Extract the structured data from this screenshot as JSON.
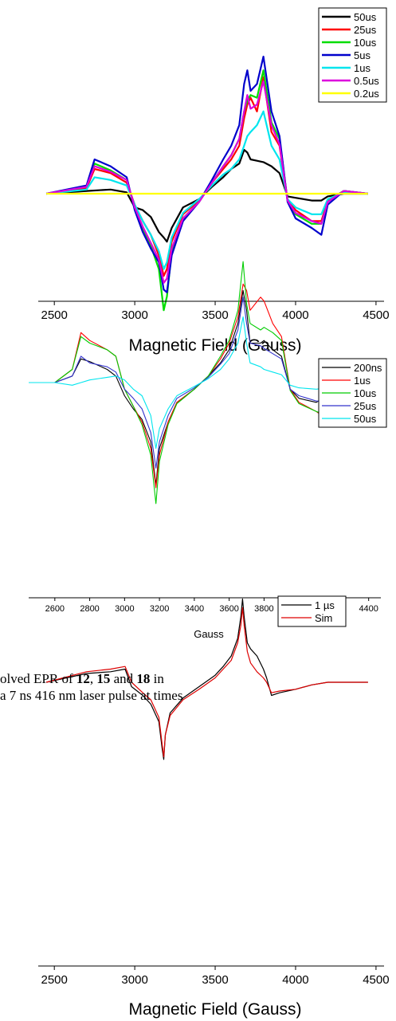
{
  "caption": {
    "line1": [
      "olved EPR of ",
      "12",
      ", ",
      "15",
      " and ",
      "18",
      " in"
    ],
    "line2": "a 7 ns 416 nm laser pulse at times"
  },
  "chart_data": [
    {
      "type": "line",
      "xlabel": "Magnetic Field (Gauss)",
      "xlim": [
        2400,
        4550
      ],
      "ylim": [
        -1.0,
        1.0
      ],
      "xticks": [
        2500,
        3000,
        3500,
        4000,
        4500
      ],
      "legend": "top-right",
      "series": [
        {
          "name": "50us",
          "color": "#000000",
          "x": [
            2450,
            2700,
            2850,
            2950,
            3000,
            3050,
            3100,
            3150,
            3180,
            3200,
            3230,
            3300,
            3400,
            3480,
            3550,
            3600,
            3650,
            3680,
            3700,
            3720,
            3760,
            3800,
            3850,
            3900,
            3950,
            4000,
            4100,
            4160,
            4200,
            4300,
            4450
          ],
          "y": [
            0,
            0.02,
            0.03,
            0.01,
            -0.1,
            -0.12,
            -0.17,
            -0.28,
            -0.32,
            -0.35,
            -0.25,
            -0.1,
            -0.04,
            0.05,
            0.12,
            0.18,
            0.22,
            0.32,
            0.3,
            0.25,
            0.24,
            0.23,
            0.2,
            0.15,
            -0.02,
            -0.03,
            -0.05,
            -0.05,
            -0.02,
            0,
            0
          ]
        },
        {
          "name": "25us",
          "color": "#ff0000",
          "x": [
            2450,
            2700,
            2750,
            2850,
            2950,
            3000,
            3050,
            3100,
            3150,
            3180,
            3200,
            3230,
            3300,
            3400,
            3480,
            3550,
            3600,
            3650,
            3680,
            3700,
            3720,
            3760,
            3800,
            3850,
            3900,
            3950,
            4000,
            4100,
            4160,
            4200,
            4300,
            4450
          ],
          "y": [
            0,
            0.04,
            0.18,
            0.15,
            0.08,
            -0.08,
            -0.2,
            -0.3,
            -0.45,
            -0.6,
            -0.55,
            -0.35,
            -0.15,
            -0.05,
            0.08,
            0.18,
            0.25,
            0.35,
            0.55,
            0.65,
            0.7,
            0.6,
            0.85,
            0.45,
            0.35,
            -0.05,
            -0.12,
            -0.2,
            -0.2,
            -0.05,
            0.02,
            0
          ]
        },
        {
          "name": "10us",
          "color": "#00dd00",
          "x": [
            2450,
            2700,
            2750,
            2850,
            2950,
            3000,
            3050,
            3100,
            3150,
            3180,
            3200,
            3230,
            3300,
            3400,
            3480,
            3550,
            3600,
            3650,
            3680,
            3700,
            3720,
            3760,
            3800,
            3850,
            3900,
            3950,
            4000,
            4100,
            4160,
            4200,
            4300,
            4450
          ],
          "y": [
            0,
            0.05,
            0.22,
            0.17,
            0.1,
            -0.1,
            -0.25,
            -0.38,
            -0.55,
            -0.85,
            -0.75,
            -0.42,
            -0.18,
            -0.06,
            0.08,
            0.2,
            0.28,
            0.4,
            0.6,
            0.68,
            0.72,
            0.7,
            0.9,
            0.52,
            0.4,
            -0.05,
            -0.15,
            -0.22,
            -0.22,
            -0.05,
            0.02,
            0
          ]
        },
        {
          "name": "5us",
          "color": "#0000cc",
          "x": [
            2450,
            2700,
            2750,
            2850,
            2950,
            3000,
            3050,
            3100,
            3150,
            3180,
            3200,
            3230,
            3300,
            3400,
            3480,
            3550,
            3600,
            3650,
            3680,
            3700,
            3720,
            3760,
            3800,
            3850,
            3900,
            3950,
            4000,
            4100,
            4160,
            4200,
            4300,
            4450
          ],
          "y": [
            0,
            0.06,
            0.25,
            0.2,
            0.12,
            -0.12,
            -0.28,
            -0.4,
            -0.5,
            -0.7,
            -0.72,
            -0.45,
            -0.2,
            -0.06,
            0.1,
            0.25,
            0.35,
            0.5,
            0.8,
            0.9,
            0.75,
            0.8,
            1.0,
            0.6,
            0.42,
            -0.06,
            -0.18,
            -0.25,
            -0.3,
            -0.08,
            0.02,
            0
          ]
        },
        {
          "name": "1us",
          "color": "#00e5ee",
          "x": [
            2450,
            2700,
            2750,
            2850,
            2950,
            3000,
            3050,
            3100,
            3150,
            3180,
            3200,
            3230,
            3300,
            3400,
            3480,
            3550,
            3600,
            3650,
            3680,
            3700,
            3720,
            3760,
            3800,
            3850,
            3900,
            3950,
            4000,
            4100,
            4160,
            4200,
            4300,
            4450
          ],
          "y": [
            0,
            0.03,
            0.12,
            0.1,
            0.06,
            -0.08,
            -0.2,
            -0.3,
            -0.42,
            -0.55,
            -0.5,
            -0.32,
            -0.14,
            -0.04,
            0.06,
            0.14,
            0.18,
            0.25,
            0.35,
            0.42,
            0.45,
            0.5,
            0.6,
            0.35,
            0.25,
            -0.04,
            -0.1,
            -0.15,
            -0.15,
            -0.04,
            0.01,
            0
          ]
        },
        {
          "name": "0.5us",
          "color": "#dd00dd",
          "x": [
            2450,
            2700,
            2750,
            2850,
            2950,
            3000,
            3050,
            3100,
            3150,
            3180,
            3200,
            3230,
            3300,
            3400,
            3480,
            3550,
            3600,
            3650,
            3680,
            3700,
            3720,
            3760,
            3800,
            3850,
            3900,
            3950,
            4000,
            4100,
            4160,
            4200,
            4300,
            4450
          ],
          "y": [
            0,
            0.05,
            0.2,
            0.16,
            0.1,
            -0.1,
            -0.24,
            -0.36,
            -0.48,
            -0.65,
            -0.62,
            -0.4,
            -0.18,
            -0.06,
            0.08,
            0.2,
            0.28,
            0.4,
            0.6,
            0.72,
            0.62,
            0.65,
            0.82,
            0.5,
            0.36,
            -0.05,
            -0.14,
            -0.2,
            -0.22,
            -0.06,
            0.02,
            0
          ]
        },
        {
          "name": "0.2us",
          "color": "#ffff00",
          "x": [
            2450,
            2700,
            2900,
            3100,
            3300,
            3500,
            3700,
            3900,
            4100,
            4300,
            4450
          ],
          "y": [
            0,
            0,
            0,
            0,
            0,
            0,
            0,
            0,
            0,
            0,
            0
          ]
        }
      ]
    },
    {
      "type": "line",
      "xlabel": "Gauss",
      "xlim": [
        2450,
        4470
      ],
      "ylim": [
        -1.0,
        1.0
      ],
      "xticks": [
        2600,
        2800,
        3000,
        3200,
        3400,
        3600,
        3800,
        4000,
        4200,
        4400
      ],
      "legend": "top-right",
      "series": [
        {
          "name": "200ns",
          "color": "#000000",
          "x": [
            2450,
            2600,
            2700,
            2750,
            2800,
            2900,
            2950,
            3000,
            3050,
            3100,
            3150,
            3180,
            3200,
            3250,
            3300,
            3400,
            3480,
            3550,
            3600,
            3650,
            3680,
            3700,
            3720,
            3780,
            3800,
            3850,
            3900,
            3950,
            4000,
            4100,
            4160,
            4200,
            4300,
            4450
          ],
          "y": [
            0,
            0,
            0.05,
            0.18,
            0.16,
            0.1,
            0.05,
            -0.1,
            -0.2,
            -0.28,
            -0.45,
            -0.78,
            -0.5,
            -0.3,
            -0.15,
            -0.05,
            0.05,
            0.15,
            0.25,
            0.45,
            0.7,
            0.55,
            0.3,
            0.3,
            0.32,
            0.25,
            0.2,
            -0.05,
            -0.12,
            -0.15,
            -0.1,
            0,
            0,
            0
          ]
        },
        {
          "name": "1us",
          "color": "#ff0000",
          "x": [
            2450,
            2600,
            2700,
            2750,
            2800,
            2900,
            2950,
            3000,
            3050,
            3100,
            3150,
            3180,
            3200,
            3250,
            3300,
            3400,
            3480,
            3550,
            3600,
            3650,
            3680,
            3700,
            3720,
            3780,
            3800,
            3850,
            3900,
            3950,
            4000,
            4100,
            4160,
            4200,
            4300,
            4450
          ],
          "y": [
            0,
            0,
            0.1,
            0.38,
            0.32,
            0.25,
            0.2,
            -0.05,
            -0.18,
            -0.3,
            -0.5,
            -0.8,
            -0.55,
            -0.3,
            -0.15,
            -0.05,
            0.05,
            0.18,
            0.3,
            0.5,
            0.75,
            0.7,
            0.55,
            0.65,
            0.62,
            0.45,
            0.35,
            -0.05,
            -0.15,
            -0.22,
            -0.28,
            0,
            0,
            0
          ]
        },
        {
          "name": "10us",
          "color": "#00cc00",
          "x": [
            2450,
            2600,
            2700,
            2750,
            2800,
            2900,
            2950,
            3000,
            3050,
            3100,
            3150,
            3180,
            3200,
            3250,
            3300,
            3400,
            3480,
            3550,
            3600,
            3650,
            3680,
            3700,
            3720,
            3780,
            3800,
            3850,
            3900,
            3950,
            4000,
            4100,
            4160,
            4200,
            4300,
            4450
          ],
          "y": [
            0,
            0,
            0.1,
            0.35,
            0.3,
            0.25,
            0.2,
            -0.05,
            -0.18,
            -0.32,
            -0.55,
            -0.92,
            -0.6,
            -0.32,
            -0.16,
            -0.05,
            0.05,
            0.2,
            0.32,
            0.55,
            0.92,
            0.6,
            0.45,
            0.4,
            0.42,
            0.38,
            0.32,
            -0.06,
            -0.16,
            -0.22,
            -0.25,
            0,
            0,
            0
          ]
        },
        {
          "name": "25us",
          "color": "#3333cc",
          "x": [
            2450,
            2600,
            2700,
            2750,
            2800,
            2900,
            2950,
            3000,
            3050,
            3100,
            3150,
            3180,
            3200,
            3250,
            3300,
            3400,
            3480,
            3550,
            3600,
            3650,
            3680,
            3700,
            3720,
            3780,
            3800,
            3850,
            3900,
            3950,
            4000,
            4100,
            4160,
            4200,
            4300,
            4450
          ],
          "y": [
            0,
            0,
            0.05,
            0.2,
            0.15,
            0.12,
            0.08,
            -0.05,
            -0.12,
            -0.2,
            -0.38,
            -0.65,
            -0.45,
            -0.25,
            -0.12,
            -0.04,
            0.04,
            0.14,
            0.22,
            0.4,
            0.65,
            0.45,
            0.3,
            0.28,
            0.26,
            0.22,
            0.18,
            -0.05,
            -0.1,
            -0.14,
            -0.15,
            0,
            0,
            0
          ]
        },
        {
          "name": "50us",
          "color": "#00e5ee",
          "x": [
            2450,
            2600,
            2700,
            2750,
            2800,
            2900,
            2950,
            3000,
            3050,
            3100,
            3150,
            3180,
            3200,
            3250,
            3300,
            3400,
            3480,
            3550,
            3600,
            3650,
            3680,
            3700,
            3720,
            3780,
            3800,
            3850,
            3900,
            3950,
            4000,
            4100,
            4160,
            4200,
            4300,
            4450
          ],
          "y": [
            0,
            0,
            -0.02,
            0,
            0.02,
            0.04,
            0.05,
            0.02,
            -0.05,
            -0.1,
            -0.25,
            -0.5,
            -0.35,
            -0.2,
            -0.1,
            -0.03,
            0.03,
            0.1,
            0.18,
            0.3,
            0.5,
            0.3,
            0.15,
            0.12,
            0.1,
            0.08,
            0.06,
            -0.02,
            -0.04,
            -0.05,
            -0.04,
            0,
            0,
            0
          ]
        }
      ]
    },
    {
      "type": "line",
      "xlabel": "Magnetic Field (Gauss)",
      "xlim": [
        2400,
        4550
      ],
      "ylim": [
        -1.0,
        1.0
      ],
      "xticks": [
        2500,
        3000,
        3500,
        4000,
        4500
      ],
      "legend": "top-right",
      "series": [
        {
          "name": "1 µs",
          "color": "#000000",
          "x": [
            2450,
            2700,
            2850,
            2940,
            2980,
            3050,
            3100,
            3150,
            3170,
            3180,
            3190,
            3220,
            3300,
            3400,
            3500,
            3550,
            3600,
            3640,
            3660,
            3670,
            3680,
            3700,
            3720,
            3760,
            3800,
            3820,
            3850,
            3900,
            4000,
            4100,
            4200,
            4300,
            4450
          ],
          "y": [
            0,
            0.1,
            0.12,
            0.15,
            -0.05,
            -0.15,
            -0.25,
            -0.45,
            -0.75,
            -0.88,
            -0.6,
            -0.35,
            -0.18,
            -0.05,
            0.08,
            0.18,
            0.3,
            0.5,
            0.75,
            0.95,
            0.75,
            0.45,
            0.38,
            0.3,
            0.15,
            0.05,
            -0.15,
            -0.12,
            -0.08,
            -0.03,
            0,
            0,
            0
          ]
        },
        {
          "name": "Sim",
          "color": "#dd0000",
          "x": [
            2450,
            2700,
            2850,
            2940,
            2980,
            3050,
            3100,
            3150,
            3170,
            3180,
            3190,
            3220,
            3300,
            3400,
            3500,
            3550,
            3600,
            3640,
            3660,
            3670,
            3680,
            3700,
            3720,
            3760,
            3800,
            3820,
            3850,
            3900,
            4000,
            4100,
            4200,
            4300,
            4450
          ],
          "y": [
            0,
            0.12,
            0.15,
            0.18,
            0,
            -0.12,
            -0.2,
            -0.4,
            -0.7,
            -0.85,
            -0.6,
            -0.38,
            -0.2,
            -0.08,
            0.05,
            0.15,
            0.25,
            0.45,
            0.65,
            0.85,
            0.65,
            0.35,
            0.22,
            0.12,
            0.05,
            0,
            -0.12,
            -0.1,
            -0.08,
            -0.03,
            0,
            0,
            0
          ]
        }
      ]
    }
  ]
}
